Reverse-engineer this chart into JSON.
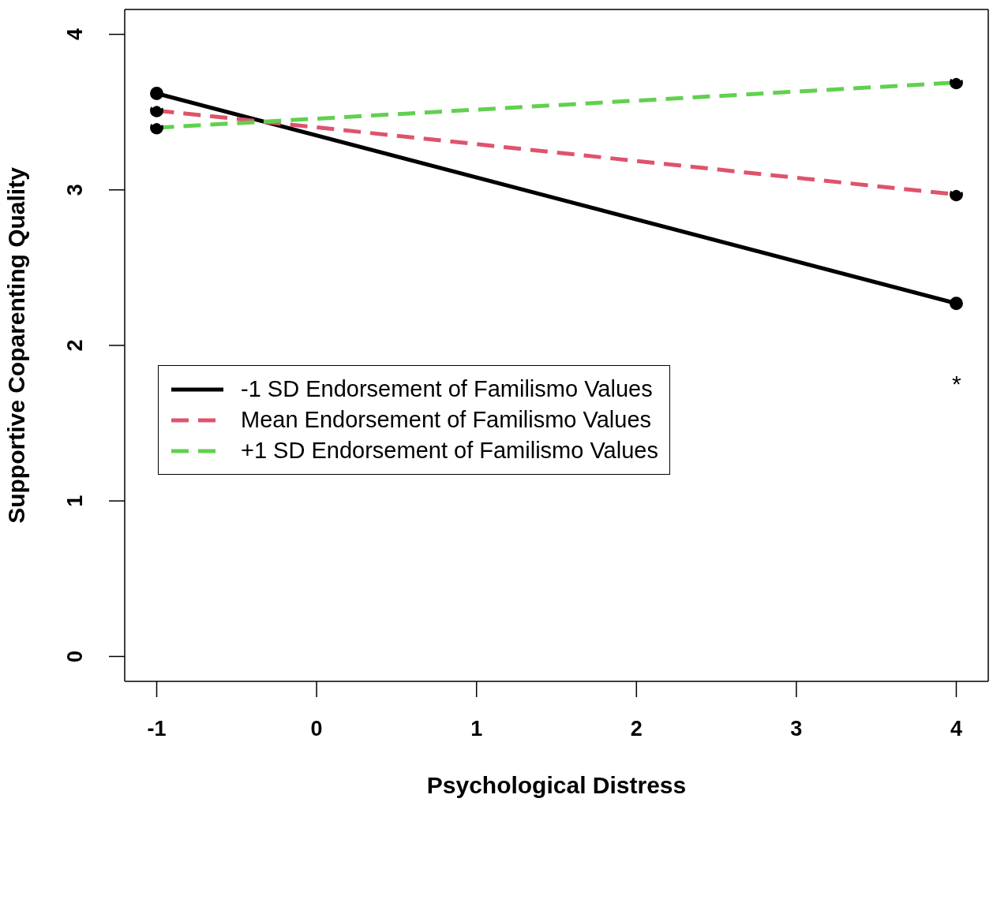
{
  "chart_data": {
    "type": "line",
    "xlabel": "Psychological Distress",
    "ylabel": "Supportive Coparenting Quality",
    "x": [
      -1,
      4
    ],
    "series": [
      {
        "name": "-1 SD Endorsement of Familismo Values",
        "color": "#000000",
        "values": [
          3.62,
          2.27
        ],
        "line_style": "solid"
      },
      {
        "name": "Mean Endorsement of Familismo Values",
        "color": "#df536b",
        "values": [
          3.51,
          2.97
        ],
        "line_style": "dashed"
      },
      {
        "name": "+1 SD Endorsement of Familismo Values",
        "color": "#61d04f",
        "values": [
          3.4,
          3.69
        ],
        "line_style": "dashed"
      }
    ],
    "xlim": [
      -1.2,
      4.2
    ],
    "xticks": [
      -1,
      0,
      1,
      2,
      3,
      4
    ],
    "ylim": [
      -0.16,
      4.16
    ],
    "yticks": [
      0,
      1,
      2,
      3,
      4
    ],
    "annotations": [
      "*"
    ],
    "marker": "circle",
    "legend": "left",
    "grid": false
  }
}
